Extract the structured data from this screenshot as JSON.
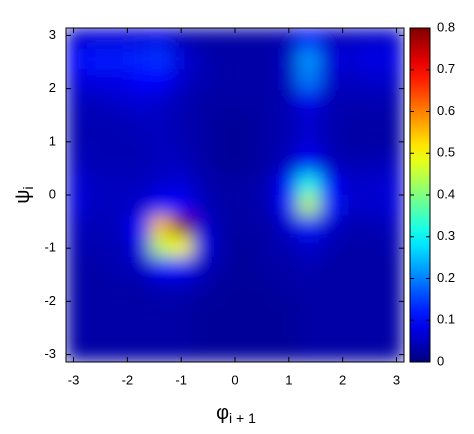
{
  "chart_data": {
    "type": "heatmap",
    "xlabel": "φ",
    "xlabel_sub": "i + 1",
    "ylabel": "ψ",
    "ylabel_sub": "i",
    "xlim": [
      -3.14,
      3.14
    ],
    "ylim": [
      -3.14,
      3.14
    ],
    "xticks": [
      -3,
      -2,
      -1,
      0,
      1,
      2,
      3
    ],
    "yticks": [
      -3,
      -2,
      -1,
      0,
      1,
      2,
      3
    ],
    "zlim": [
      0,
      0.8
    ],
    "zticks": [
      0,
      0.1,
      0.2,
      0.3,
      0.4,
      0.5,
      0.6,
      0.7,
      0.8
    ],
    "colormap": "jet",
    "x": [
      -2.94,
      -2.55,
      -2.16,
      -1.77,
      -1.37,
      -0.98,
      -0.59,
      -0.2,
      0.2,
      0.59,
      0.98,
      1.37,
      1.77,
      2.16,
      2.55,
      2.94
    ],
    "y": [
      2.94,
      2.55,
      2.16,
      1.77,
      1.37,
      0.98,
      0.59,
      0.2,
      -0.2,
      -0.59,
      -0.98,
      -1.37,
      -1.77,
      -2.16,
      -2.55,
      -2.94
    ],
    "z": [
      [
        0.06,
        0.07,
        0.07,
        0.07,
        0.08,
        0.04,
        0.03,
        0.03,
        0.03,
        0.03,
        0.04,
        0.1,
        0.05,
        0.05,
        0.06,
        0.06
      ],
      [
        0.1,
        0.12,
        0.12,
        0.13,
        0.14,
        0.07,
        0.04,
        0.03,
        0.03,
        0.03,
        0.05,
        0.22,
        0.07,
        0.07,
        0.08,
        0.08
      ],
      [
        0.07,
        0.08,
        0.08,
        0.1,
        0.1,
        0.06,
        0.04,
        0.03,
        0.03,
        0.03,
        0.05,
        0.2,
        0.06,
        0.05,
        0.06,
        0.06
      ],
      [
        0.05,
        0.05,
        0.06,
        0.07,
        0.06,
        0.04,
        0.03,
        0.03,
        0.03,
        0.03,
        0.04,
        0.09,
        0.04,
        0.04,
        0.04,
        0.04
      ],
      [
        0.04,
        0.04,
        0.04,
        0.05,
        0.05,
        0.04,
        0.03,
        0.02,
        0.02,
        0.03,
        0.04,
        0.06,
        0.04,
        0.03,
        0.03,
        0.03
      ],
      [
        0.04,
        0.04,
        0.04,
        0.04,
        0.05,
        0.04,
        0.03,
        0.02,
        0.02,
        0.03,
        0.04,
        0.07,
        0.04,
        0.03,
        0.03,
        0.03
      ],
      [
        0.05,
        0.04,
        0.04,
        0.04,
        0.05,
        0.05,
        0.03,
        0.02,
        0.02,
        0.03,
        0.05,
        0.1,
        0.05,
        0.04,
        0.04,
        0.05
      ],
      [
        0.07,
        0.05,
        0.05,
        0.05,
        0.06,
        0.07,
        0.04,
        0.03,
        0.03,
        0.04,
        0.1,
        0.32,
        0.1,
        0.06,
        0.06,
        0.07
      ],
      [
        0.07,
        0.05,
        0.05,
        0.06,
        0.1,
        0.1,
        0.05,
        0.03,
        0.03,
        0.04,
        0.11,
        0.45,
        0.12,
        0.06,
        0.06,
        0.07
      ],
      [
        0.05,
        0.04,
        0.05,
        0.1,
        0.55,
        0.8,
        0.07,
        0.03,
        0.03,
        0.03,
        0.06,
        0.12,
        0.06,
        0.04,
        0.04,
        0.05
      ],
      [
        0.04,
        0.04,
        0.04,
        0.08,
        0.45,
        0.5,
        0.08,
        0.03,
        0.02,
        0.03,
        0.04,
        0.06,
        0.04,
        0.03,
        0.03,
        0.04
      ],
      [
        0.03,
        0.03,
        0.04,
        0.05,
        0.1,
        0.1,
        0.05,
        0.03,
        0.02,
        0.03,
        0.03,
        0.04,
        0.03,
        0.03,
        0.03,
        0.03
      ],
      [
        0.03,
        0.03,
        0.03,
        0.03,
        0.04,
        0.04,
        0.03,
        0.02,
        0.02,
        0.02,
        0.03,
        0.03,
        0.03,
        0.03,
        0.03,
        0.03
      ],
      [
        0.03,
        0.03,
        0.03,
        0.03,
        0.03,
        0.03,
        0.02,
        0.02,
        0.02,
        0.02,
        0.02,
        0.03,
        0.03,
        0.03,
        0.03,
        0.03
      ],
      [
        0.03,
        0.03,
        0.03,
        0.03,
        0.03,
        0.03,
        0.02,
        0.02,
        0.02,
        0.02,
        0.02,
        0.03,
        0.03,
        0.03,
        0.03,
        0.03
      ],
      [
        0.03,
        0.03,
        0.03,
        0.03,
        0.03,
        0.03,
        0.02,
        0.02,
        0.02,
        0.02,
        0.02,
        0.03,
        0.03,
        0.03,
        0.03,
        0.03
      ]
    ]
  }
}
